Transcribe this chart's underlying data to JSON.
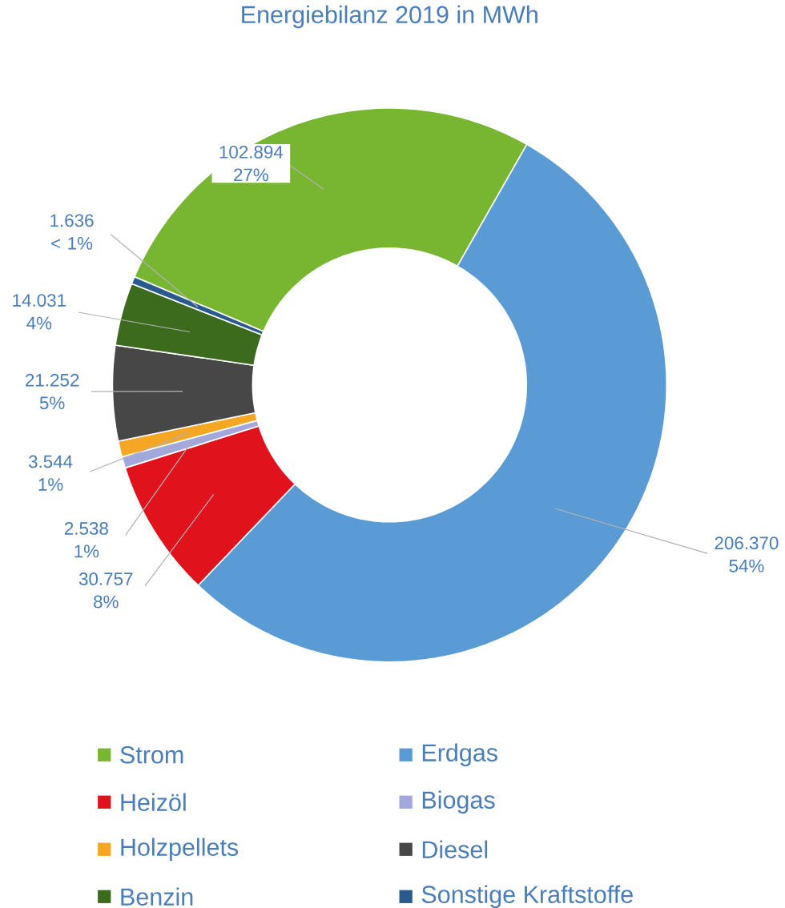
{
  "chart_data": {
    "type": "donut",
    "title": "Energiebilanz 2019 in MWh",
    "categories": [
      "Strom",
      "Erdgas",
      "Heizöl",
      "Biogas",
      "Holzpellets",
      "Diesel",
      "Benzin",
      "Sonstige Kraftstoffe"
    ],
    "values": [
      102894,
      206370,
      30757,
      2538,
      3544,
      21252,
      14031,
      1636
    ],
    "colors": [
      "#78b530",
      "#5b9bd5",
      "#e0121b",
      "#a3a8dc",
      "#f5a623",
      "#474747",
      "#3d6b1e",
      "#2a5a8c"
    ],
    "value_labels": [
      "102.894 27%",
      "206.370 54%",
      "30.757 8%",
      "2.538 1%",
      "3.544 1%",
      "21.252 5%",
      "14.031 4%",
      "1.636 < 1%"
    ],
    "legend": "bottom"
  }
}
